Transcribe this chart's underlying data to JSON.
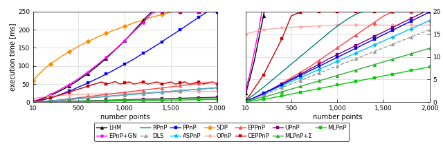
{
  "x": [
    10,
    50,
    100,
    150,
    200,
    250,
    300,
    350,
    400,
    450,
    500,
    550,
    600,
    650,
    700,
    750,
    800,
    850,
    900,
    950,
    1000,
    1050,
    1100,
    1150,
    1200,
    1250,
    1300,
    1350,
    1400,
    1450,
    1500,
    1550,
    1600,
    1650,
    1700,
    1750,
    1800,
    1850,
    1900,
    1950,
    2000
  ],
  "subplot_a": {
    "LHM": [
      2,
      5,
      9,
      14,
      19,
      25,
      31,
      38,
      45,
      53,
      61,
      70,
      79,
      89,
      99,
      110,
      121,
      133,
      145,
      157,
      170,
      183,
      197,
      211,
      225,
      239,
      250,
      250,
      250,
      250,
      250,
      250,
      250,
      250,
      250,
      250,
      250,
      250,
      250,
      250,
      250
    ],
    "EPnP_GN": [
      3,
      6,
      11,
      16,
      22,
      28,
      35,
      42,
      49,
      57,
      65,
      74,
      83,
      93,
      103,
      113,
      124,
      135,
      146,
      158,
      170,
      182,
      195,
      207,
      220,
      233,
      246,
      250,
      250,
      250,
      250,
      250,
      250,
      250,
      250,
      250,
      250,
      250,
      250,
      250,
      250
    ],
    "SDP": [
      60,
      72,
      85,
      96,
      106,
      115,
      124,
      132,
      140,
      147,
      154,
      161,
      167,
      173,
      179,
      185,
      190,
      195,
      200,
      205,
      210,
      214,
      219,
      223,
      227,
      231,
      235,
      238,
      242,
      245,
      248,
      250,
      250,
      250,
      250,
      250,
      250,
      250,
      250,
      250,
      250
    ],
    "PPnP": [
      1,
      3,
      6,
      9,
      13,
      17,
      21,
      26,
      31,
      36,
      42,
      47,
      53,
      59,
      65,
      71,
      78,
      84,
      91,
      98,
      105,
      112,
      119,
      127,
      135,
      142,
      150,
      158,
      166,
      175,
      183,
      191,
      200,
      208,
      217,
      225,
      234,
      242,
      250,
      250,
      250
    ],
    "OPnP": [
      10,
      12,
      14,
      16,
      17,
      18,
      19,
      20,
      20.5,
      21,
      21.5,
      22,
      22.3,
      22.6,
      22.9,
      23.2,
      23.5,
      23.8,
      24.1,
      24.4,
      24.7,
      25,
      25.3,
      25.6,
      25.9,
      26.2,
      26.5,
      26.8,
      27.1,
      27.4,
      27.7,
      28,
      28.3,
      28.6,
      28.9,
      29.2,
      29.5,
      29.8,
      30.1,
      30.4,
      30.7
    ],
    "CEPPnP": [
      1,
      3,
      6,
      9,
      12,
      16,
      20,
      24,
      28,
      32,
      36,
      40,
      44,
      48,
      52,
      56,
      50,
      53,
      57,
      50,
      53,
      56,
      50,
      53,
      56,
      50,
      53,
      56,
      50,
      53,
      56,
      50,
      53,
      56,
      50,
      53,
      56,
      50,
      53,
      56,
      50
    ],
    "EPPnP": [
      0.5,
      1,
      2,
      3,
      4,
      5,
      6.5,
      8,
      9.5,
      11,
      12.5,
      14,
      15.5,
      17,
      18.5,
      20,
      21.5,
      23,
      24.5,
      26,
      27.5,
      29,
      30.5,
      32,
      33.5,
      35,
      36.5,
      38,
      39.5,
      41,
      42.5,
      44,
      45.5,
      47,
      48.5,
      50,
      51.5,
      53,
      54.5,
      56,
      50
    ],
    "RPnP": [
      0.5,
      1,
      2,
      3,
      4,
      5,
      6,
      7,
      8,
      9,
      10,
      11,
      12,
      13,
      14,
      15,
      16,
      17,
      18,
      19,
      20,
      21,
      22,
      23,
      24,
      25,
      26,
      27,
      28,
      29,
      30,
      31,
      32,
      33,
      34,
      35,
      36,
      37,
      38,
      39,
      40
    ],
    "ASPnP": [
      0.5,
      1,
      2,
      3,
      4,
      5,
      6,
      7,
      8,
      9,
      10,
      11,
      12,
      13,
      14,
      15,
      16,
      17,
      18,
      19,
      20,
      21,
      22,
      23,
      24,
      25,
      26,
      27,
      28,
      29,
      30,
      31,
      32,
      33,
      34,
      35,
      36,
      37,
      38,
      39,
      40
    ],
    "DLS": [
      0.5,
      1,
      2,
      3,
      4,
      5,
      6,
      7,
      8,
      9,
      10,
      11,
      12,
      13,
      14,
      15,
      16,
      17,
      18,
      19,
      20,
      21,
      22,
      23,
      24,
      25,
      26,
      27,
      28,
      29,
      30,
      31,
      32,
      33,
      34,
      35,
      36,
      37,
      38,
      39,
      40
    ],
    "UPnP": [
      0.2,
      0.4,
      0.7,
      1.0,
      1.3,
      1.6,
      2.0,
      2.3,
      2.7,
      3.0,
      3.4,
      3.7,
      4.1,
      4.4,
      4.8,
      5.1,
      5.5,
      5.8,
      6.2,
      6.5,
      6.9,
      7.2,
      7.6,
      7.9,
      8.3,
      8.6,
      9.0,
      9.3,
      9.7,
      10.0,
      10.4,
      10.7,
      11.1,
      11.4,
      11.8,
      12.1,
      12.5,
      12.8,
      13.2,
      13.5,
      13.9
    ],
    "MLPnP_sum": [
      0.2,
      0.4,
      0.6,
      0.9,
      1.1,
      1.4,
      1.7,
      2.0,
      2.3,
      2.6,
      2.9,
      3.2,
      3.5,
      3.8,
      4.1,
      4.4,
      4.7,
      5.0,
      5.3,
      5.6,
      5.9,
      6.2,
      6.5,
      6.8,
      7.1,
      7.4,
      7.7,
      8.0,
      8.3,
      8.6,
      8.9,
      9.2,
      9.5,
      9.8,
      10.1,
      10.4,
      10.7,
      11.0,
      11.3,
      11.6,
      11.9
    ],
    "MLPnP": [
      0.1,
      0.2,
      0.3,
      0.5,
      0.6,
      0.8,
      1.0,
      1.2,
      1.4,
      1.6,
      1.8,
      2.0,
      2.2,
      2.4,
      2.6,
      2.8,
      3.0,
      3.2,
      3.4,
      3.6,
      3.8,
      4.0,
      4.2,
      4.4,
      4.6,
      4.8,
      5.0,
      5.2,
      5.4,
      5.6,
      5.8,
      6.0,
      6.2,
      6.4,
      6.6,
      6.8,
      7.0,
      7.2,
      7.4,
      7.6,
      7.8
    ]
  },
  "subplot_b": {
    "LHM": [
      2,
      5,
      9,
      14,
      19,
      25,
      31,
      38,
      45,
      53,
      61,
      70,
      79,
      89,
      99,
      110,
      121,
      133,
      145,
      157,
      170,
      183,
      197,
      211,
      225,
      239,
      250,
      250,
      250,
      250,
      250,
      250,
      250,
      250,
      250,
      250,
      250,
      250,
      250,
      250,
      250
    ],
    "EPnP_GN": [
      3,
      6,
      11,
      16,
      22,
      28,
      35,
      42,
      49,
      57,
      65,
      74,
      83,
      93,
      103,
      113,
      124,
      135,
      146,
      158,
      170,
      182,
      195,
      207,
      220,
      233,
      246,
      250,
      250,
      250,
      250,
      250,
      250,
      250,
      250,
      250,
      250,
      250,
      250,
      250,
      250
    ],
    "OPnP": [
      15,
      15.3,
      15.5,
      15.8,
      16.0,
      16.1,
      16.2,
      16.3,
      16.4,
      16.5,
      16.5,
      16.6,
      16.6,
      16.7,
      16.7,
      16.8,
      16.8,
      16.9,
      16.9,
      17.0,
      17.0,
      17.0,
      17.0,
      17.0,
      17.0,
      17.0,
      17.0,
      17.0,
      17.0,
      17.0,
      17.0,
      17.0,
      17.0,
      17.0,
      17.0,
      17.0,
      17.0,
      17.0,
      17.0,
      17.0,
      17.0
    ],
    "CEPPnP": [
      0.5,
      1.5,
      3.0,
      4.5,
      6.0,
      8.0,
      10.0,
      12.0,
      14.0,
      16.5,
      19.0,
      19.5,
      19.8,
      20.0,
      20.0,
      20.0,
      20.0,
      20.0,
      20.0,
      20.0,
      20.0,
      20.0,
      20.0,
      20.0,
      20.0,
      20.0,
      20.0,
      20.0,
      20.0,
      20.0,
      20.0,
      20.0,
      20.0,
      20.0,
      20.0,
      20.0,
      20.0,
      20.0,
      20.0,
      20.0,
      20.0
    ],
    "EPPnP": [
      0.3,
      0.6,
      1.0,
      1.5,
      2.0,
      2.5,
      3.0,
      3.6,
      4.2,
      4.8,
      5.4,
      6.0,
      6.6,
      7.2,
      7.8,
      8.5,
      9.2,
      9.9,
      10.6,
      11.3,
      12.0,
      12.7,
      13.4,
      14.1,
      14.8,
      15.5,
      16.2,
      16.9,
      17.6,
      18.3,
      19.0,
      19.5,
      20.0,
      20.0,
      20.0,
      20.0,
      20.0,
      20.0,
      20.0,
      20.0,
      20.0
    ],
    "RPnP": [
      0.5,
      1.0,
      1.7,
      2.5,
      3.3,
      4.1,
      5.0,
      5.8,
      6.7,
      7.5,
      8.4,
      9.2,
      10.1,
      10.9,
      11.8,
      12.6,
      13.5,
      14.3,
      15.2,
      16.0,
      16.8,
      17.5,
      18.2,
      18.8,
      19.4,
      19.8,
      20.0,
      20.0,
      20.0,
      20.0,
      20.0,
      20.0,
      20.0,
      20.0,
      20.0,
      20.0,
      20.0,
      20.0,
      20.0,
      20.0,
      20.0
    ],
    "UPnP": [
      0.3,
      0.6,
      1.0,
      1.5,
      2.0,
      2.5,
      3.0,
      3.5,
      4.0,
      4.5,
      5.1,
      5.6,
      6.2,
      6.7,
      7.3,
      7.8,
      8.4,
      8.9,
      9.5,
      10.0,
      10.5,
      11.0,
      11.5,
      12.0,
      12.5,
      13.0,
      13.5,
      14.0,
      14.5,
      15.0,
      15.5,
      16.0,
      16.5,
      17.0,
      17.5,
      18.0,
      18.5,
      19.0,
      19.5,
      20.0,
      20.0
    ],
    "PPnP": [
      0.3,
      0.6,
      1.0,
      1.4,
      1.9,
      2.4,
      2.9,
      3.4,
      3.9,
      4.4,
      4.9,
      5.4,
      5.9,
      6.4,
      6.9,
      7.4,
      7.9,
      8.4,
      8.9,
      9.4,
      9.9,
      10.4,
      10.9,
      11.4,
      11.9,
      12.4,
      12.9,
      13.4,
      13.9,
      14.4,
      14.9,
      15.4,
      15.9,
      16.4,
      16.9,
      17.4,
      17.9,
      18.4,
      18.9,
      19.4,
      19.9
    ],
    "ASPnP": [
      0.3,
      0.6,
      1.0,
      1.4,
      1.8,
      2.3,
      2.7,
      3.2,
      3.6,
      4.1,
      4.5,
      5.0,
      5.4,
      5.9,
      6.3,
      6.8,
      7.2,
      7.7,
      8.1,
      8.6,
      9.0,
      9.5,
      9.9,
      10.4,
      10.8,
      11.3,
      11.7,
      12.2,
      12.6,
      13.1,
      13.5,
      14.0,
      14.4,
      14.9,
      15.3,
      15.8,
      16.2,
      16.7,
      17.1,
      17.6,
      18.0
    ],
    "DLS": [
      0.2,
      0.5,
      0.8,
      1.2,
      1.6,
      2.0,
      2.4,
      2.8,
      3.2,
      3.6,
      4.0,
      4.4,
      4.8,
      5.2,
      5.6,
      6.0,
      6.4,
      6.8,
      7.2,
      7.6,
      8.0,
      8.4,
      8.8,
      9.2,
      9.6,
      10.0,
      10.4,
      10.8,
      11.2,
      11.6,
      12.0,
      12.4,
      12.8,
      13.2,
      13.6,
      14.0,
      14.4,
      14.8,
      15.2,
      15.6,
      16.0
    ],
    "MLPnP_sum": [
      0.2,
      0.4,
      0.6,
      0.9,
      1.1,
      1.4,
      1.7,
      2.0,
      2.3,
      2.6,
      2.9,
      3.2,
      3.5,
      3.8,
      4.1,
      4.4,
      4.7,
      5.0,
      5.3,
      5.6,
      5.9,
      6.2,
      6.5,
      6.8,
      7.1,
      7.4,
      7.7,
      8.0,
      8.3,
      8.6,
      8.9,
      9.2,
      9.5,
      9.8,
      10.1,
      10.4,
      10.7,
      11.0,
      11.3,
      11.6,
      11.9
    ],
    "MLPnP": [
      0.1,
      0.2,
      0.3,
      0.5,
      0.6,
      0.8,
      1.0,
      1.2,
      1.4,
      1.6,
      1.8,
      2.0,
      2.2,
      2.4,
      2.6,
      2.8,
      3.0,
      3.2,
      3.4,
      3.6,
      3.8,
      4.0,
      4.2,
      4.4,
      4.6,
      4.8,
      5.0,
      5.2,
      5.4,
      5.6,
      5.8,
      6.0,
      6.2,
      6.4,
      6.6,
      6.8,
      7.0,
      7.2,
      7.4,
      7.6,
      7.8
    ]
  },
  "styles": {
    "LHM": {
      "color": "#000000",
      "marker": "^",
      "ms": 3.5,
      "ls": "-",
      "lw": 1.0
    },
    "EPnP_GN": {
      "color": "#ff00ff",
      "marker": "p",
      "ms": 3.5,
      "ls": "-",
      "lw": 1.0
    },
    "RPnP": {
      "color": "#008080",
      "marker": "",
      "ms": 3.5,
      "ls": "-",
      "lw": 1.0
    },
    "DLS": {
      "color": "#999999",
      "marker": "^",
      "ms": 3.5,
      "ls": "--",
      "lw": 1.0
    },
    "PPnP": {
      "color": "#0000ff",
      "marker": "s",
      "ms": 3.5,
      "ls": "-",
      "lw": 1.0
    },
    "ASPnP": {
      "color": "#00bfff",
      "marker": "D",
      "ms": 3.0,
      "ls": "-",
      "lw": 1.0
    },
    "SDP": {
      "color": "#ff8c00",
      "marker": "D",
      "ms": 3.5,
      "ls": "-",
      "lw": 1.0
    },
    "OPnP": {
      "color": "#ffaaaa",
      "marker": "o",
      "ms": 3.0,
      "ls": "-",
      "lw": 1.0
    },
    "EPPnP": {
      "color": "#ff4444",
      "marker": "^",
      "ms": 3.5,
      "ls": "-",
      "lw": 1.0
    },
    "CEPPnP": {
      "color": "#cc0000",
      "marker": "s",
      "ms": 3.5,
      "ls": "-",
      "lw": 1.0
    },
    "UPnP": {
      "color": "#800080",
      "marker": "s",
      "ms": 3.5,
      "ls": "-",
      "lw": 1.0
    },
    "MLPnP_sum": {
      "color": "#33aa33",
      "marker": "^",
      "ms": 3.5,
      "ls": "-",
      "lw": 1.0
    },
    "MLPnP": {
      "color": "#00cc00",
      "marker": "s",
      "ms": 3.5,
      "ls": "-",
      "lw": 1.0
    }
  },
  "legend_rows": [
    [
      {
        "key": "LHM",
        "label": "LHM"
      },
      {
        "key": "EPnP_GN",
        "label": "EPnP+GN"
      },
      {
        "key": "RPnP",
        "label": "RPnP"
      },
      {
        "key": "DLS",
        "label": "DLS"
      },
      {
        "key": "PPnP",
        "label": "PPnP"
      },
      {
        "key": "ASPnP",
        "label": "ASPnP"
      },
      {
        "key": "SDP",
        "label": "SDP"
      }
    ],
    [
      {
        "key": "OPnP",
        "label": "OPnP"
      },
      {
        "key": "EPPnP",
        "label": "EPPnP"
      },
      {
        "key": "CEPPnP",
        "label": "CEPPnP"
      },
      {
        "key": "UPnP",
        "label": "UPnP"
      },
      {
        "key": "MLPnP_sum",
        "label": "MLPnP+Σ"
      },
      {
        "key": "MLPnP",
        "label": "MLPnP"
      }
    ]
  ]
}
